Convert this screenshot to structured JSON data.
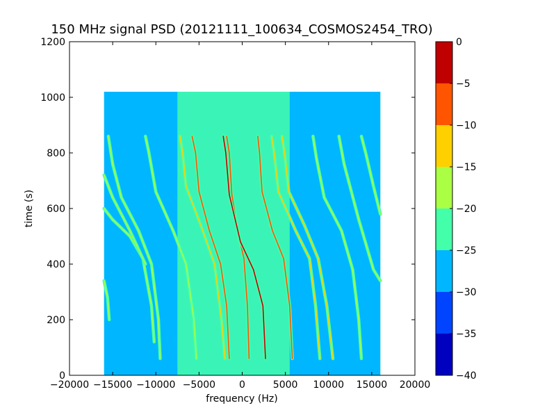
{
  "chart_data": {
    "type": "heatmap",
    "title": "150 MHz signal PSD (20121111_100634_COSMOS2454_TRO)",
    "xlabel": "frequency (Hz)",
    "ylabel": "time (s)",
    "xlim": [
      -20000,
      20000
    ],
    "ylim": [
      0,
      1200
    ],
    "x_ticks": [
      -20000,
      -15000,
      -10000,
      -5000,
      0,
      5000,
      10000,
      15000,
      20000
    ],
    "x_tick_labels": [
      "−20000",
      "−15000",
      "−10000",
      "−5000",
      "0",
      "5000",
      "10000",
      "15000",
      "20000"
    ],
    "y_ticks": [
      0,
      200,
      400,
      600,
      800,
      1000,
      1200
    ],
    "y_tick_labels": [
      "0",
      "200",
      "400",
      "600",
      "800",
      "1000",
      "1200"
    ],
    "data_extent": {
      "x": [
        -16000,
        16000
      ],
      "y": [
        0,
        1020
      ]
    },
    "background_level": -27,
    "central_band": {
      "x_range": [
        -7500,
        5500
      ],
      "level": -22
    },
    "colorbar": {
      "range": [
        -40,
        0
      ],
      "levels": [
        -40,
        -35,
        -30,
        -25,
        -20,
        -15,
        -10,
        -5,
        0
      ],
      "tick_labels": [
        "−40",
        "−35",
        "−30",
        "−25",
        "−20",
        "−15",
        "−10",
        "−5",
        "0"
      ],
      "colors": [
        "#0000c0",
        "#0044ff",
        "#00b7ff",
        "#44ffaa",
        "#aaff44",
        "#ffd000",
        "#ff5500",
        "#c00000"
      ]
    },
    "traces": [
      {
        "name": "",
        "peak": -8,
        "points": [
          [
            -1800,
            860
          ],
          [
            -1500,
            800
          ],
          [
            -1200,
            650
          ],
          [
            -400,
            500
          ],
          [
            200,
            420
          ],
          [
            600,
            250
          ],
          [
            800,
            60
          ]
        ]
      },
      {
        "name": "",
        "peak": -8,
        "points": [
          [
            -5800,
            860
          ],
          [
            -5400,
            800
          ],
          [
            -5000,
            660
          ],
          [
            -3800,
            520
          ],
          [
            -2500,
            400
          ],
          [
            -1800,
            250
          ],
          [
            -1500,
            60
          ]
        ]
      },
      {
        "name": "",
        "peak": -8,
        "points": [
          [
            1800,
            860
          ],
          [
            2000,
            800
          ],
          [
            2300,
            660
          ],
          [
            3500,
            520
          ],
          [
            4800,
            420
          ],
          [
            5500,
            250
          ],
          [
            5800,
            60
          ]
        ]
      },
      {
        "name": "",
        "peak": -5,
        "points": [
          [
            -2200,
            860
          ],
          [
            -1900,
            800
          ],
          [
            -1500,
            650
          ],
          [
            -200,
            480
          ],
          [
            1300,
            380
          ],
          [
            2400,
            250
          ],
          [
            2700,
            60
          ]
        ]
      },
      {
        "name": "",
        "peak": -12,
        "points": [
          [
            -7200,
            860
          ],
          [
            -6900,
            800
          ],
          [
            -6500,
            680
          ],
          [
            -4800,
            540
          ],
          [
            -3200,
            400
          ],
          [
            -2400,
            200
          ],
          [
            -2000,
            60
          ]
        ]
      },
      {
        "name": "",
        "peak": -12,
        "points": [
          [
            4600,
            860
          ],
          [
            4900,
            800
          ],
          [
            5400,
            660
          ],
          [
            7200,
            540
          ],
          [
            8800,
            420
          ],
          [
            9800,
            250
          ],
          [
            10500,
            60
          ]
        ]
      },
      {
        "name": "",
        "peak": -14,
        "points": [
          [
            3400,
            860
          ],
          [
            3700,
            800
          ],
          [
            4200,
            660
          ],
          [
            6200,
            520
          ],
          [
            7800,
            420
          ],
          [
            8500,
            250
          ],
          [
            9000,
            60
          ]
        ]
      },
      {
        "name": "",
        "peak": -16,
        "points": [
          [
            8200,
            860
          ],
          [
            8600,
            780
          ],
          [
            9500,
            640
          ],
          [
            11500,
            520
          ],
          [
            12800,
            380
          ],
          [
            13500,
            200
          ],
          [
            13800,
            60
          ]
        ]
      },
      {
        "name": "",
        "peak": -16,
        "points": [
          [
            -11200,
            860
          ],
          [
            -10800,
            800
          ],
          [
            -10000,
            660
          ],
          [
            -8000,
            520
          ],
          [
            -6500,
            400
          ],
          [
            -5600,
            200
          ],
          [
            -5300,
            60
          ]
        ]
      },
      {
        "name": "",
        "peak": -17,
        "points": [
          [
            -15500,
            860
          ],
          [
            -15000,
            760
          ],
          [
            -14000,
            640
          ],
          [
            -12000,
            520
          ],
          [
            -10500,
            400
          ],
          [
            -9700,
            200
          ],
          [
            -9500,
            60
          ]
        ]
      },
      {
        "name": "",
        "peak": -18,
        "points": [
          [
            -16000,
            600
          ],
          [
            -15000,
            560
          ],
          [
            -13000,
            500
          ],
          [
            -11500,
            420
          ],
          [
            -10500,
            250
          ],
          [
            -10200,
            120
          ]
        ]
      },
      {
        "name": "",
        "peak": -19,
        "points": [
          [
            -16000,
            720
          ],
          [
            -15000,
            640
          ],
          [
            -13000,
            520
          ],
          [
            -11200,
            400
          ]
        ]
      },
      {
        "name": "",
        "peak": -17,
        "points": [
          [
            13800,
            860
          ],
          [
            14300,
            800
          ],
          [
            15200,
            680
          ],
          [
            16000,
            580
          ]
        ]
      },
      {
        "name": "",
        "peak": -20,
        "points": [
          [
            11200,
            860
          ],
          [
            11800,
            760
          ],
          [
            13500,
            560
          ],
          [
            15200,
            380
          ],
          [
            16000,
            340
          ]
        ]
      },
      {
        "name": "",
        "peak": -20,
        "points": [
          [
            -16000,
            340
          ],
          [
            -15600,
            280
          ],
          [
            -15400,
            200
          ]
        ]
      }
    ]
  }
}
